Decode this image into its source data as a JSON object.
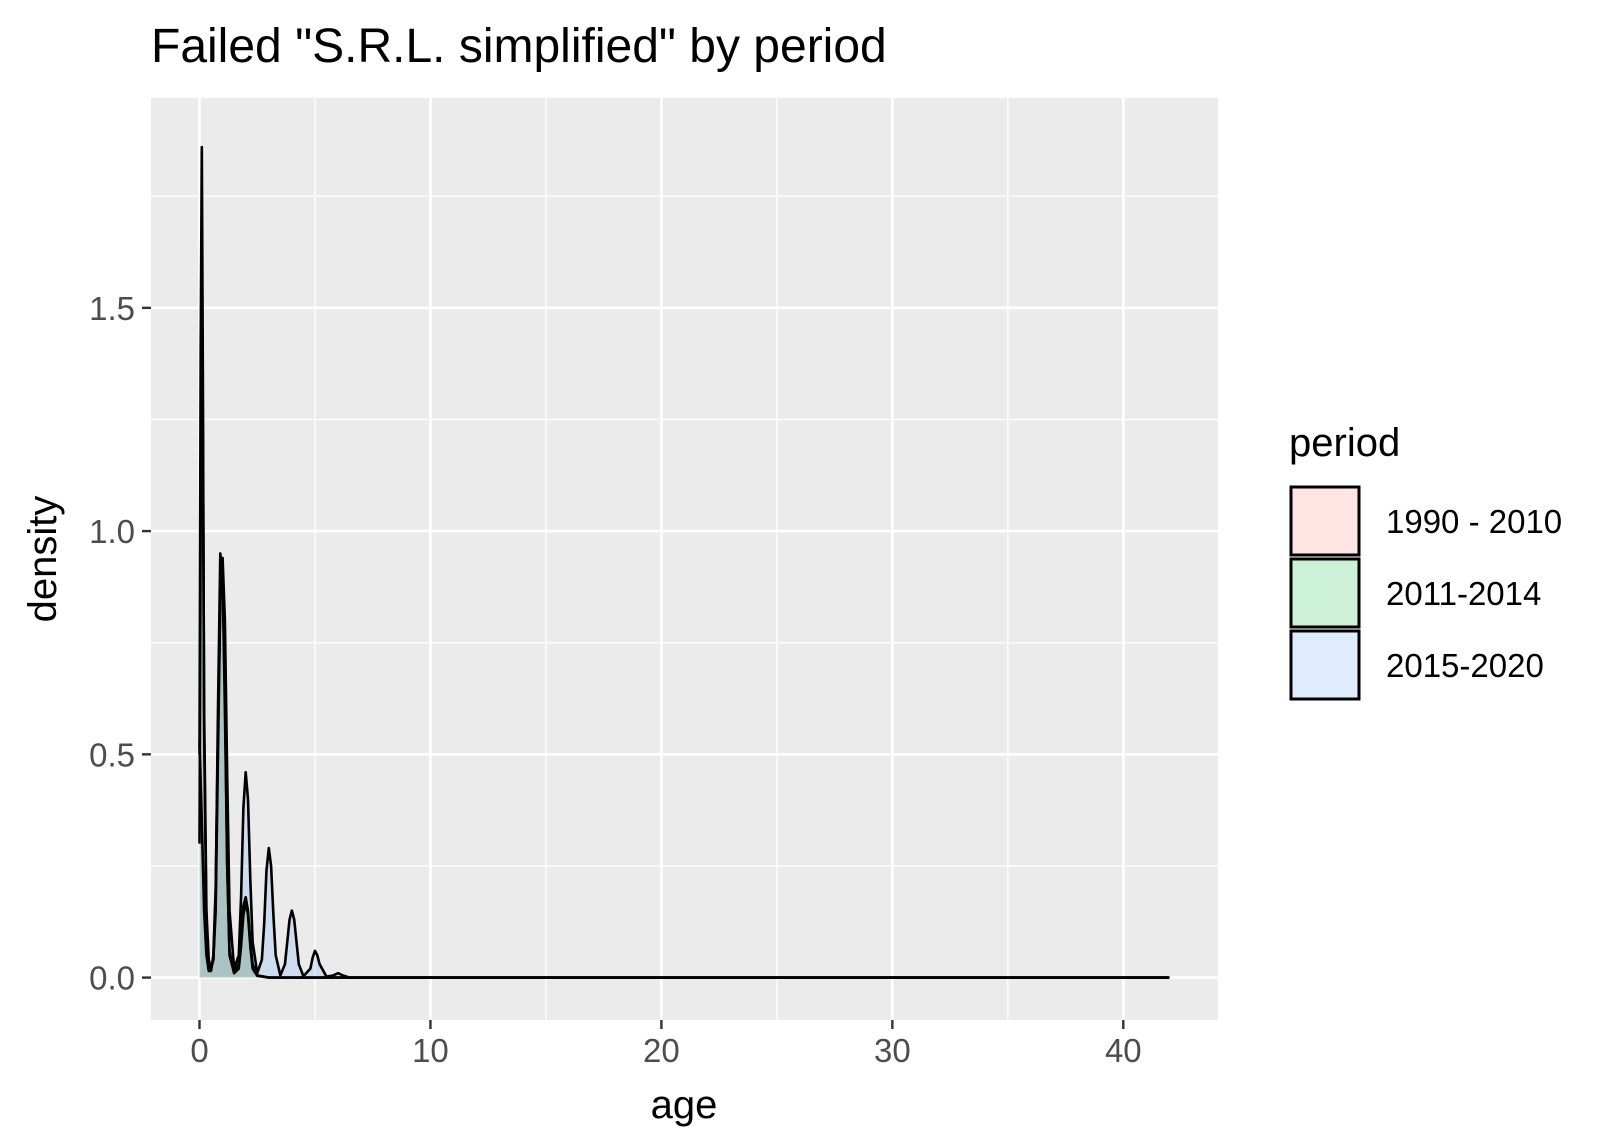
{
  "chart_data": {
    "type": "area",
    "title": "Failed \"S.R.L. simplified\" by period",
    "xlabel": "age",
    "ylabel": "density",
    "xlim": [
      -2.1,
      44.1
    ],
    "ylim": [
      -0.095,
      1.97
    ],
    "x_ticks": [
      0,
      10,
      20,
      30,
      40
    ],
    "x_tick_labels": [
      "0",
      "10",
      "20",
      "30",
      "40"
    ],
    "y_ticks": [
      0.0,
      0.5,
      1.0,
      1.5
    ],
    "y_tick_labels": [
      "0.0",
      "0.5",
      "1.0",
      "1.5"
    ],
    "grid": true,
    "legend": {
      "title": "period",
      "position": "right"
    },
    "series": [
      {
        "name": "1990 - 2010",
        "fill": "#F8766D",
        "x": [
          0,
          0.05,
          0.1,
          0.15,
          0.2,
          0.3,
          0.4,
          0.5,
          0.6,
          0.7,
          0.8,
          0.9,
          1.0,
          1.1,
          1.2,
          1.3,
          1.5,
          1.7,
          1.8,
          1.9,
          2.0,
          2.1,
          2.2,
          2.3,
          2.5,
          3.0,
          4.0,
          6.0,
          10.0,
          20.0,
          30.0,
          42.0
        ],
        "values": [
          0.3,
          1.0,
          1.5,
          1.2,
          0.6,
          0.15,
          0.04,
          0.02,
          0.04,
          0.18,
          0.6,
          0.95,
          0.9,
          0.6,
          0.25,
          0.06,
          0.01,
          0.03,
          0.09,
          0.16,
          0.18,
          0.15,
          0.08,
          0.03,
          0.005,
          0.0,
          0.0,
          0.0,
          0.0,
          0.0,
          0.0,
          0.0
        ]
      },
      {
        "name": "2011-2014",
        "fill": "#00BA38",
        "x": [
          0,
          0.05,
          0.1,
          0.15,
          0.2,
          0.3,
          0.4,
          0.5,
          0.6,
          0.7,
          0.8,
          0.9,
          1.0,
          1.1,
          1.2,
          1.3,
          1.5,
          1.7,
          1.8,
          1.9,
          2.0,
          2.1,
          2.2,
          2.3,
          2.5,
          3.0,
          4.0,
          6.0,
          10.0,
          20.0,
          30.0,
          42.0
        ],
        "values": [
          0.5,
          1.4,
          1.86,
          1.3,
          0.55,
          0.12,
          0.03,
          0.02,
          0.04,
          0.15,
          0.5,
          0.85,
          0.92,
          0.65,
          0.25,
          0.05,
          0.01,
          0.02,
          0.07,
          0.14,
          0.17,
          0.14,
          0.07,
          0.02,
          0.004,
          0.0,
          0.0,
          0.0,
          0.0,
          0.0,
          0.0,
          0.0
        ]
      },
      {
        "name": "2015-2020",
        "fill": "#619CFF",
        "x": [
          0,
          0.1,
          0.2,
          0.3,
          0.4,
          0.5,
          0.6,
          0.7,
          0.8,
          0.9,
          1.0,
          1.1,
          1.2,
          1.3,
          1.5,
          1.7,
          1.8,
          1.9,
          2.0,
          2.1,
          2.2,
          2.3,
          2.5,
          2.7,
          2.8,
          2.9,
          3.0,
          3.1,
          3.2,
          3.3,
          3.5,
          3.7,
          3.8,
          3.9,
          4.0,
          4.1,
          4.2,
          4.3,
          4.5,
          4.8,
          4.9,
          5.0,
          5.1,
          5.2,
          5.5,
          5.8,
          6.0,
          6.2,
          6.5,
          8.0,
          10.0,
          20.0,
          30.0,
          42.0
        ],
        "values": [
          0.53,
          0.35,
          0.15,
          0.05,
          0.015,
          0.015,
          0.05,
          0.2,
          0.55,
          0.85,
          0.94,
          0.8,
          0.45,
          0.15,
          0.02,
          0.05,
          0.18,
          0.38,
          0.46,
          0.4,
          0.22,
          0.08,
          0.01,
          0.04,
          0.12,
          0.24,
          0.29,
          0.25,
          0.14,
          0.05,
          0.005,
          0.03,
          0.08,
          0.13,
          0.15,
          0.13,
          0.08,
          0.03,
          0.003,
          0.02,
          0.045,
          0.06,
          0.05,
          0.03,
          0.002,
          0.005,
          0.01,
          0.005,
          0.0,
          0.0,
          0.0,
          0.0,
          0.0,
          0.0
        ]
      }
    ]
  }
}
